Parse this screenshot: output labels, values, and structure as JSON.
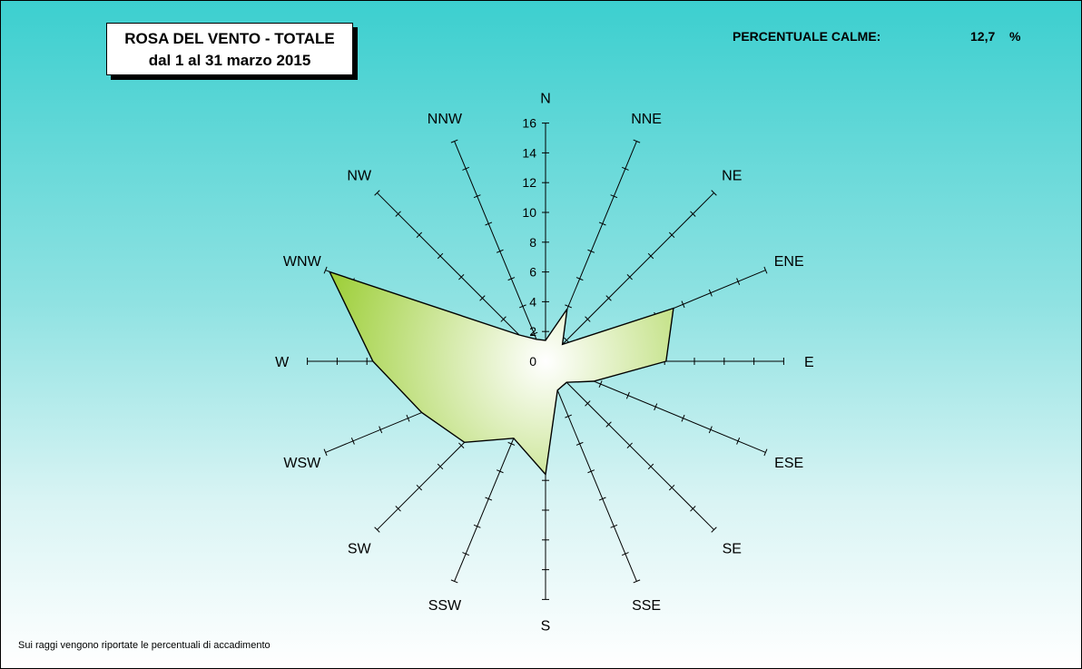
{
  "title": {
    "line1": "ROSA DEL VENTO - TOTALE",
    "line2": "dal 1 al 31 marzo 2015"
  },
  "calm": {
    "label": "PERCENTUALE CALME:",
    "value": "12,7",
    "unit": "%"
  },
  "footnote": "Sui raggi vengono riportate le percentuali di accadimento",
  "colors": {
    "background_top": "#3ccfcf",
    "background_bottom": "#ffffff",
    "fill_outer": "#9acd32",
    "fill_inner": "#ffffff"
  },
  "chart_data": {
    "type": "radar",
    "directions": [
      "N",
      "NNE",
      "NE",
      "ENE",
      "E",
      "ESE",
      "SE",
      "SSE",
      "S",
      "SSW",
      "SW",
      "WSW",
      "W",
      "WNW",
      "NW",
      "NNW"
    ],
    "values": [
      1.4,
      3.8,
      1.6,
      9.3,
      8.1,
      3.5,
      2.0,
      2.1,
      7.6,
      5.6,
      7.7,
      9.0,
      11.6,
      15.7,
      2.5,
      1.6
    ],
    "r_ticks": [
      "0",
      "2",
      "4",
      "6",
      "8",
      "10",
      "12",
      "14",
      "16"
    ],
    "rlim": [
      0,
      16
    ]
  }
}
